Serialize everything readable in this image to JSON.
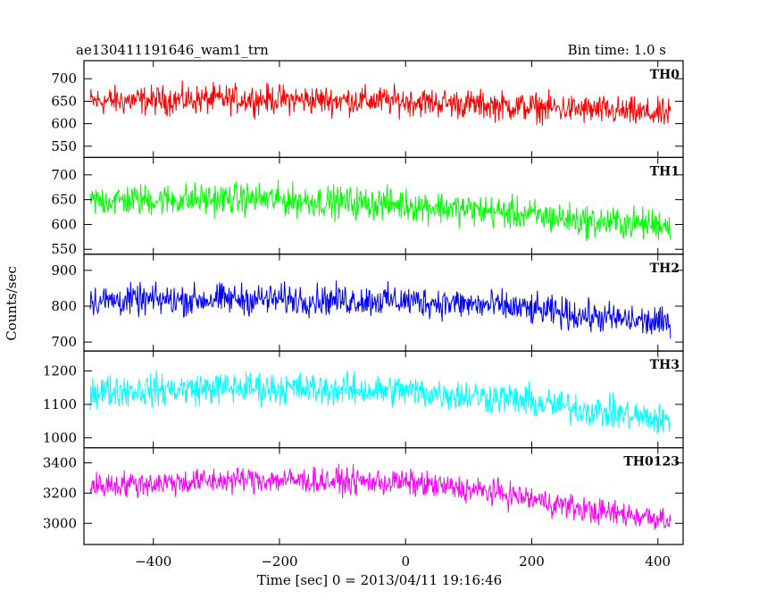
{
  "header": {
    "title": "ae130411191646_wam1_trn",
    "bin_time": "Bin time: 1.0 s"
  },
  "chart_data": {
    "type": "line",
    "title": "ae130411191646_wam1_trn",
    "subtitle": "Bin time: 1.0 s",
    "xlabel": "Time [sec] 0 = 2013/04/11 19:16:46",
    "ylabel": "Counts/sec",
    "xlim": [
      -510,
      440
    ],
    "x_range_data": [
      -500,
      420
    ],
    "x_ticks": [
      -400,
      -200,
      0,
      200,
      400
    ],
    "x_tick_labels": [
      "−400",
      "−200",
      "0",
      "200",
      "400"
    ],
    "grid": false,
    "series": [
      {
        "name": "TH0",
        "color": "#ff0000",
        "ylim": [
          525,
          740
        ],
        "y_ticks": [
          550,
          600,
          650,
          700
        ],
        "y_tick_labels": [
          "550",
          "600",
          "650",
          "700"
        ],
        "trend_x": [
          -500,
          -250,
          0,
          150,
          300,
          420
        ],
        "trend_y": [
          650,
          655,
          650,
          640,
          630,
          620
        ],
        "noise_amplitude": 30
      },
      {
        "name": "TH1",
        "color": "#00ff00",
        "ylim": [
          540,
          735
        ],
        "y_ticks": [
          550,
          600,
          650,
          700
        ],
        "y_tick_labels": [
          "550",
          "600",
          "650",
          "700"
        ],
        "trend_x": [
          -500,
          -250,
          0,
          150,
          300,
          420
        ],
        "trend_y": [
          648,
          652,
          640,
          625,
          605,
          600
        ],
        "noise_amplitude": 30
      },
      {
        "name": "TH2",
        "color": "#0000ff",
        "ylim": [
          675,
          945
        ],
        "y_ticks": [
          700,
          800,
          900
        ],
        "y_tick_labels": [
          "700",
          "800",
          "900"
        ],
        "trend_x": [
          -500,
          -250,
          0,
          150,
          300,
          420
        ],
        "trend_y": [
          815,
          820,
          815,
          800,
          770,
          750
        ],
        "noise_amplitude": 40
      },
      {
        "name": "TH3",
        "color": "#00ffff",
        "ylim": [
          970,
          1260
        ],
        "y_ticks": [
          1000,
          1100,
          1200
        ],
        "y_tick_labels": [
          "1000",
          "1100",
          "1200"
        ],
        "trend_x": [
          -500,
          -250,
          0,
          150,
          300,
          420
        ],
        "trend_y": [
          1140,
          1150,
          1140,
          1120,
          1080,
          1050
        ],
        "noise_amplitude": 45
      },
      {
        "name": "TH0123",
        "color": "#ff00ff",
        "ylim": [
          2860,
          3500
        ],
        "y_ticks": [
          3000,
          3200,
          3400
        ],
        "y_tick_labels": [
          "3000",
          "3200",
          "3400"
        ],
        "trend_x": [
          -500,
          -250,
          0,
          150,
          300,
          420
        ],
        "trend_y": [
          3250,
          3290,
          3270,
          3200,
          3080,
          3030
        ],
        "noise_amplitude": 80
      }
    ]
  }
}
